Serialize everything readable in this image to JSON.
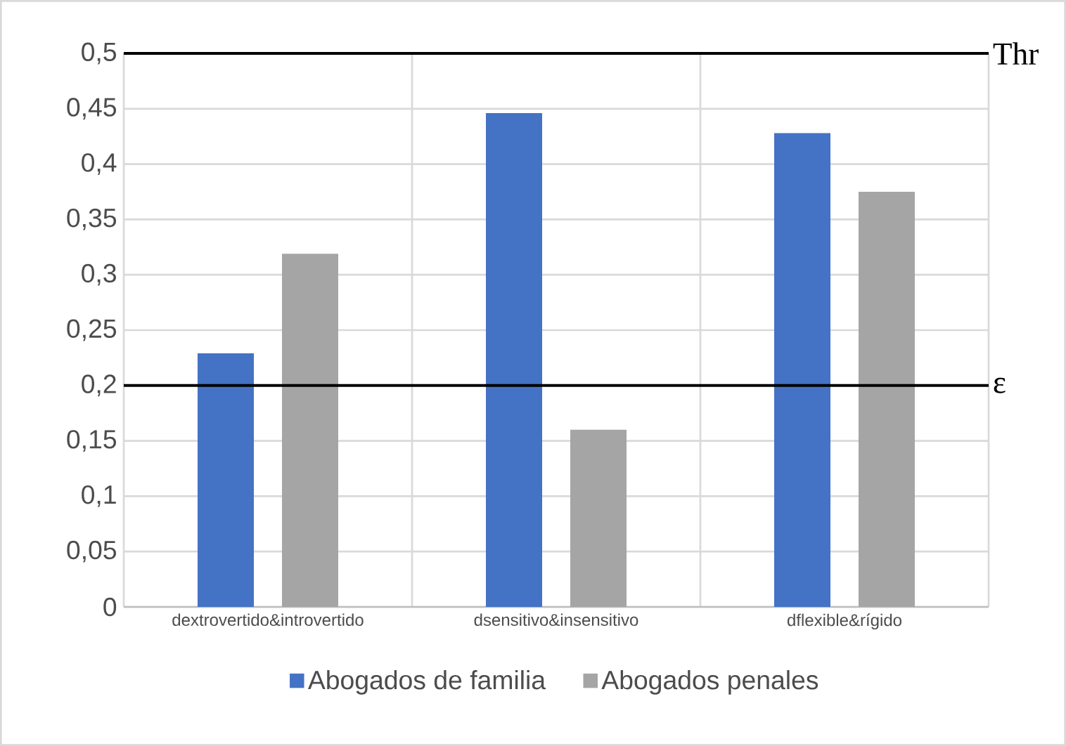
{
  "chart_data": {
    "type": "bar",
    "categories": [
      "dextrovertido&introvertido",
      "dsensitivo&insensitivo",
      "dflexible&rígido"
    ],
    "series": [
      {
        "name": "Abogados de familia",
        "color": "#4472c4",
        "values": [
          0.229,
          0.446,
          0.428
        ]
      },
      {
        "name": "Abogados penales",
        "color": "#a5a5a5",
        "values": [
          0.319,
          0.16,
          0.375
        ]
      }
    ],
    "ylim": [
      0,
      0.5
    ],
    "yticks": [
      0,
      {
        "value": 0.05,
        "label": "0,05"
      },
      {
        "value": 0.1,
        "label": "0,1"
      },
      {
        "value": 0.15,
        "label": "0,15"
      },
      {
        "value": 0.2,
        "label": "0,2"
      },
      {
        "value": 0.25,
        "label": "0,25"
      },
      {
        "value": 0.3,
        "label": "0,3"
      },
      {
        "value": 0.35,
        "label": "0,35"
      },
      {
        "value": 0.4,
        "label": "0,4"
      },
      {
        "value": 0.45,
        "label": "0,45"
      },
      {
        "value": 0.5,
        "label": "0,5"
      }
    ],
    "ref_lines": [
      {
        "axis": "y",
        "value": 0.5,
        "label": "Thr",
        "color": "#000000"
      },
      {
        "axis": "y",
        "value": 0.2,
        "label": "ε",
        "color": "#000000"
      }
    ],
    "grid": true,
    "legend": "bottom"
  }
}
